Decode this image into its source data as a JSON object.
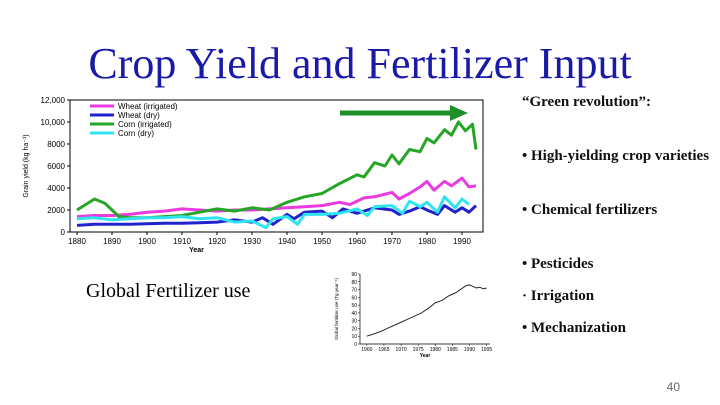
{
  "slide": {
    "title": "Crop Yield and Fertilizer Input",
    "green_revolution": "“Green revolution”:",
    "bullets": [
      "• High-yielding crop varieties",
      "• Chemical fertilizers",
      "• Pesticides",
      "· Irrigation",
      "• Mechanization"
    ],
    "global_label": "Global Fertilizer use",
    "page_number": "40",
    "arrow_color": "#1f8f2a"
  },
  "chart_data": [
    {
      "type": "line",
      "title": "",
      "xlabel": "Year",
      "ylabel": "Grain yield (kg ha⁻¹)",
      "xlim": [
        1878,
        1996
      ],
      "ylim": [
        0,
        12000
      ],
      "xticks": [
        1880,
        1890,
        1900,
        1910,
        1920,
        1930,
        1940,
        1950,
        1960,
        1970,
        1980,
        1990
      ],
      "yticks": [
        0,
        2000,
        4000,
        6000,
        8000,
        10000,
        12000
      ],
      "ytick_labels": [
        "0",
        "2000",
        "4000",
        "6000",
        "8000",
        "10,000",
        "12,000"
      ],
      "legend_position": "top-left",
      "series": [
        {
          "name": "Wheat (irrigated)",
          "color": "#e93be0",
          "x": [
            1880,
            1885,
            1890,
            1895,
            1900,
            1905,
            1910,
            1915,
            1920,
            1925,
            1930,
            1935,
            1940,
            1945,
            1950,
            1955,
            1958,
            1962,
            1965,
            1970,
            1972,
            1975,
            1978,
            1980,
            1982,
            1985,
            1987,
            1990,
            1992,
            1994
          ],
          "y": [
            1400,
            1500,
            1500,
            1600,
            1800,
            1900,
            2100,
            2000,
            1900,
            2000,
            2000,
            2100,
            2200,
            2300,
            2400,
            2700,
            2500,
            3100,
            3200,
            3600,
            3000,
            3500,
            4100,
            4600,
            3800,
            4600,
            4200,
            4900,
            4100,
            4200
          ]
        },
        {
          "name": "Wheat (dry)",
          "color": "#2222cc",
          "x": [
            1880,
            1885,
            1890,
            1895,
            1900,
            1905,
            1910,
            1915,
            1920,
            1925,
            1930,
            1933,
            1936,
            1940,
            1942,
            1945,
            1950,
            1953,
            1956,
            1960,
            1965,
            1970,
            1972,
            1975,
            1978,
            1980,
            1983,
            1985,
            1988,
            1990,
            1992,
            1994
          ],
          "y": [
            600,
            700,
            700,
            700,
            750,
            800,
            800,
            850,
            900,
            1100,
            900,
            1300,
            700,
            1600,
            1200,
            1800,
            1900,
            1300,
            2100,
            1700,
            2200,
            2000,
            1600,
            1900,
            2300,
            2000,
            1600,
            2400,
            1800,
            2200,
            1800,
            2400
          ]
        },
        {
          "name": "Corn (irrigated)",
          "color": "#26a526",
          "x": [
            1880,
            1885,
            1888,
            1892,
            1895,
            1900,
            1905,
            1910,
            1915,
            1920,
            1925,
            1930,
            1935,
            1940,
            1945,
            1950,
            1955,
            1960,
            1962,
            1965,
            1968,
            1970,
            1972,
            1975,
            1978,
            1980,
            1982,
            1985,
            1987,
            1989,
            1991,
            1993,
            1994
          ],
          "y": [
            2000,
            3000,
            2600,
            1400,
            1300,
            1300,
            1400,
            1500,
            1800,
            2100,
            1900,
            2200,
            2000,
            2700,
            3200,
            3500,
            4400,
            5200,
            5000,
            6300,
            6000,
            7000,
            6200,
            7500,
            7300,
            8500,
            8100,
            9300,
            8800,
            10000,
            9200,
            9800,
            7500
          ]
        },
        {
          "name": "Corn (dry)",
          "color": "#2ee4f0",
          "x": [
            1880,
            1885,
            1890,
            1895,
            1900,
            1905,
            1910,
            1915,
            1920,
            1925,
            1930,
            1934,
            1936,
            1940,
            1943,
            1945,
            1950,
            1955,
            1960,
            1963,
            1965,
            1970,
            1973,
            1975,
            1978,
            1980,
            1983,
            1985,
            1988,
            1990,
            1992
          ],
          "y": [
            1200,
            1300,
            1100,
            1200,
            1300,
            1300,
            1400,
            1200,
            1300,
            900,
            1000,
            400,
            1200,
            1400,
            700,
            1600,
            1600,
            1700,
            2100,
            1500,
            2300,
            2400,
            1700,
            2800,
            2300,
            2700,
            1800,
            3200,
            2200,
            3000,
            2500
          ]
        }
      ]
    },
    {
      "type": "line",
      "title": "",
      "xlabel": "Year",
      "ylabel": "Global fertilizer use (Tg year⁻¹)",
      "xlim": [
        1958,
        1996
      ],
      "ylim": [
        0,
        90
      ],
      "xticks": [
        1960,
        1965,
        1970,
        1975,
        1980,
        1985,
        1990,
        1995
      ],
      "yticks": [
        0,
        10,
        20,
        30,
        40,
        50,
        60,
        70,
        80,
        90
      ],
      "series": [
        {
          "name": "Global fertilizer use",
          "color": "#111111",
          "x": [
            1960,
            1962,
            1964,
            1966,
            1968,
            1970,
            1972,
            1974,
            1976,
            1978,
            1980,
            1982,
            1984,
            1986,
            1988,
            1989,
            1990,
            1991,
            1992,
            1993,
            1994,
            1995
          ],
          "y": [
            10,
            13,
            16,
            20,
            24,
            28,
            32,
            36,
            40,
            46,
            53,
            56,
            62,
            66,
            72,
            75,
            76,
            74,
            72,
            73,
            71,
            72
          ]
        }
      ]
    }
  ]
}
